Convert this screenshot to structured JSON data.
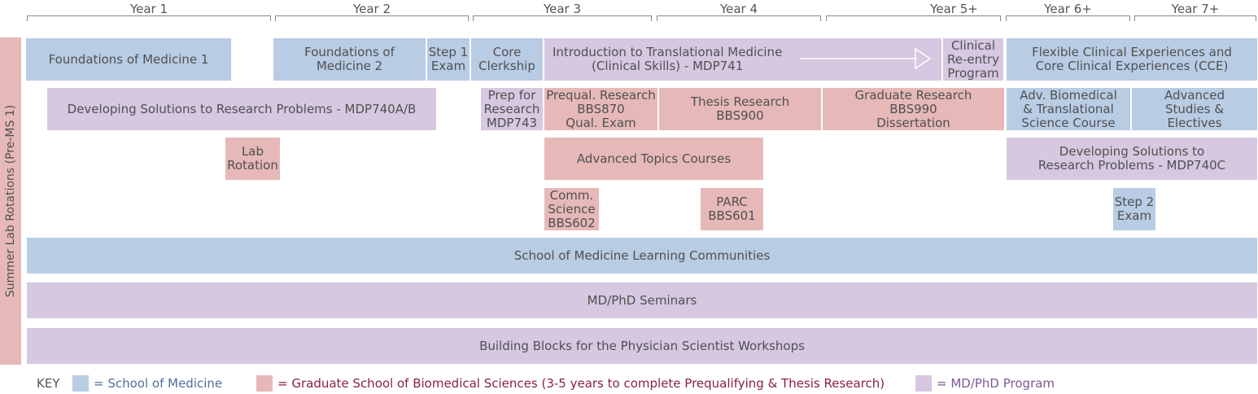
{
  "years": [
    "Year 1",
    "Year 2",
    "Year 3",
    "Year 4",
    "Year 5+",
    "Year 6+",
    "Year 7+"
  ],
  "side_label": "Summer Lab Rotations (Pre-MS 1)",
  "blocks": {
    "fom1": "Foundations of Medicine 1",
    "fom2": "Foundations of\nMedicine 2",
    "step1": "Step 1\nExam",
    "core_clerkship": "Core\nClerkship",
    "itm": "Introduction to Translational Medicine\n(Clinical Skills) - MDP741",
    "reentry": "Clinical\nRe-entry\nProgram",
    "flex": "Flexible Clinical Experiences and\nCore Clinical Experiences (CCE)",
    "dsrp_ab": "Developing Solutions to Research Problems - MDP740A/B",
    "prep": "Prep for\nResearch\nMDP743",
    "prequal": "Prequal. Research\nBBS870\nQual. Exam",
    "thesis": "Thesis Research\nBBS900",
    "grad": "Graduate Research\nBBS990\nDissertation",
    "adv_bio": "Adv. Biomedical\n& Translational\nScience Course",
    "adv_studies": "Advanced\nStudies &\nElectives",
    "lab_rot": "Lab\nRotation",
    "adv_topics": "Advanced Topics Courses",
    "dsrp_c": "Developing Solutions to\nResearch Problems - MDP740C",
    "comm": "Comm.\nScience\nBBS602",
    "parc": "PARC\nBBS601",
    "step2": "Step 2\nExam",
    "learning": "School of Medicine Learning Communities",
    "seminars": "MD/PhD Seminars",
    "building": "Building Blocks for the Physician Scientist Workshops"
  },
  "key": {
    "label": "KEY",
    "som": "= School of Medicine",
    "gsbs": "= Graduate School of Biomedical Sciences (3-5 years to complete Prequalifying & Thesis Research)",
    "mdphd": "= MD/PhD Program"
  },
  "colors": {
    "som": "#b8cce4",
    "gsbs": "#e6b9b8",
    "mdphd": "#d6c8e0",
    "som_text": "#4f6e9c",
    "gsbs_text": "#8b2040",
    "mdphd_text": "#7a5a94"
  }
}
